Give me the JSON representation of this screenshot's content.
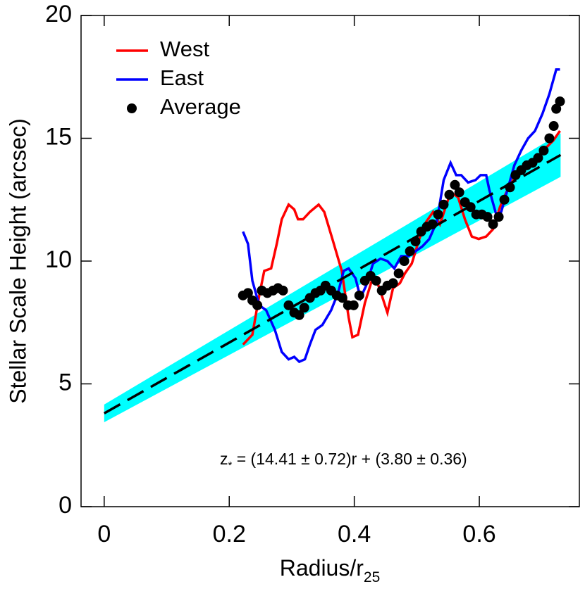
{
  "chart_data": {
    "type": "line",
    "xlabel": {
      "text": "Radius/r",
      "sub": "25"
    },
    "ylabel": "Stellar Scale Height (arcsec)",
    "xlim": [
      -0.037,
      0.76
    ],
    "ylim": [
      0,
      20
    ],
    "xticks": [
      0,
      0.2,
      0.4,
      0.6
    ],
    "yticks": [
      0,
      5,
      10,
      15,
      20
    ],
    "legend": "upper left",
    "band": {
      "color": "#00ffff",
      "x": [
        0,
        0.73
      ],
      "lower": [
        3.44,
        13.43
      ],
      "upper": [
        4.16,
        15.2
      ]
    },
    "fit": {
      "color": "#000000",
      "dash": true,
      "x": [
        0,
        0.73
      ],
      "values": [
        3.8,
        14.32
      ]
    },
    "series": [
      {
        "name": "West",
        "color": "#ff0000",
        "style": "line",
        "x": [
          0.222,
          0.237,
          0.248,
          0.256,
          0.267,
          0.276,
          0.284,
          0.295,
          0.304,
          0.31,
          0.318,
          0.329,
          0.343,
          0.352,
          0.365,
          0.38,
          0.391,
          0.397,
          0.406,
          0.417,
          0.428,
          0.436,
          0.444,
          0.453,
          0.462,
          0.473,
          0.481,
          0.492,
          0.504,
          0.515,
          0.526,
          0.537,
          0.554,
          0.566,
          0.577,
          0.588,
          0.599,
          0.611,
          0.622,
          0.633,
          0.645,
          0.661,
          0.678,
          0.695,
          0.706,
          0.718,
          0.729
        ],
        "values": [
          6.6,
          7.0,
          8.6,
          9.6,
          9.7,
          10.7,
          11.7,
          12.3,
          12.1,
          11.7,
          11.7,
          12.0,
          12.3,
          12.0,
          10.9,
          9.6,
          7.7,
          6.9,
          7.0,
          8.3,
          9.2,
          9.2,
          8.6,
          7.9,
          8.9,
          9.1,
          9.5,
          9.9,
          10.9,
          11.6,
          12.0,
          11.5,
          12.8,
          12.6,
          11.7,
          11.0,
          10.9,
          11.0,
          11.3,
          12.2,
          12.9,
          13.6,
          14.0,
          14.2,
          14.6,
          14.9,
          15.3
        ]
      },
      {
        "name": "East",
        "color": "#0000ff",
        "style": "line",
        "x": [
          0.222,
          0.23,
          0.237,
          0.248,
          0.259,
          0.273,
          0.284,
          0.295,
          0.304,
          0.312,
          0.321,
          0.329,
          0.338,
          0.349,
          0.363,
          0.374,
          0.383,
          0.391,
          0.402,
          0.41,
          0.419,
          0.43,
          0.442,
          0.453,
          0.464,
          0.475,
          0.487,
          0.498,
          0.509,
          0.52,
          0.532,
          0.543,
          0.554,
          0.563,
          0.571,
          0.582,
          0.594,
          0.602,
          0.611,
          0.616,
          0.627,
          0.635,
          0.645,
          0.656,
          0.667,
          0.678,
          0.689,
          0.701,
          0.712,
          0.723,
          0.729
        ],
        "values": [
          11.2,
          10.7,
          9.2,
          8.2,
          8.0,
          7.2,
          6.3,
          6.0,
          6.1,
          5.9,
          6.0,
          6.6,
          7.2,
          7.4,
          8.0,
          8.7,
          9.6,
          9.7,
          9.3,
          8.5,
          9.0,
          9.9,
          10.1,
          10.0,
          9.7,
          10.2,
          10.2,
          10.4,
          10.6,
          10.9,
          11.6,
          13.3,
          14.0,
          13.5,
          13.5,
          13.2,
          13.3,
          13.5,
          13.5,
          12.9,
          11.9,
          12.0,
          12.9,
          13.9,
          14.5,
          15.0,
          15.3,
          16.0,
          16.8,
          17.8,
          17.8
        ]
      },
      {
        "name": "Average",
        "color": "#000000",
        "style": "marker",
        "x": [
          0.222,
          0.23,
          0.237,
          0.245,
          0.252,
          0.261,
          0.27,
          0.278,
          0.286,
          0.295,
          0.304,
          0.312,
          0.32,
          0.329,
          0.338,
          0.346,
          0.354,
          0.363,
          0.372,
          0.381,
          0.39,
          0.399,
          0.408,
          0.417,
          0.426,
          0.435,
          0.444,
          0.453,
          0.462,
          0.471,
          0.48,
          0.489,
          0.498,
          0.507,
          0.516,
          0.525,
          0.534,
          0.543,
          0.552,
          0.561,
          0.568,
          0.577,
          0.586,
          0.595,
          0.604,
          0.613,
          0.622,
          0.631,
          0.64,
          0.649,
          0.658,
          0.667,
          0.676,
          0.685,
          0.694,
          0.703,
          0.712,
          0.719,
          0.723,
          0.729
        ],
        "values": [
          8.6,
          8.7,
          8.4,
          8.2,
          8.8,
          8.7,
          8.8,
          8.9,
          8.8,
          8.2,
          7.9,
          7.8,
          8.1,
          8.5,
          8.7,
          8.8,
          9.0,
          8.8,
          8.6,
          8.5,
          8.2,
          8.2,
          8.6,
          9.2,
          9.4,
          9.2,
          8.8,
          9.0,
          9.1,
          9.5,
          10.0,
          10.4,
          10.8,
          11.2,
          11.4,
          11.5,
          11.9,
          12.3,
          12.7,
          13.1,
          12.8,
          12.4,
          12.2,
          11.9,
          11.9,
          11.8,
          11.5,
          11.8,
          12.5,
          13.0,
          13.5,
          13.7,
          13.9,
          14.0,
          14.2,
          14.5,
          15.0,
          15.5,
          16.2,
          16.5
        ]
      }
    ],
    "annotation": {
      "text": "z",
      "sub": "*",
      "rest": " = (14.41 ± 0.72)r + (3.80 ± 0.36)"
    }
  }
}
